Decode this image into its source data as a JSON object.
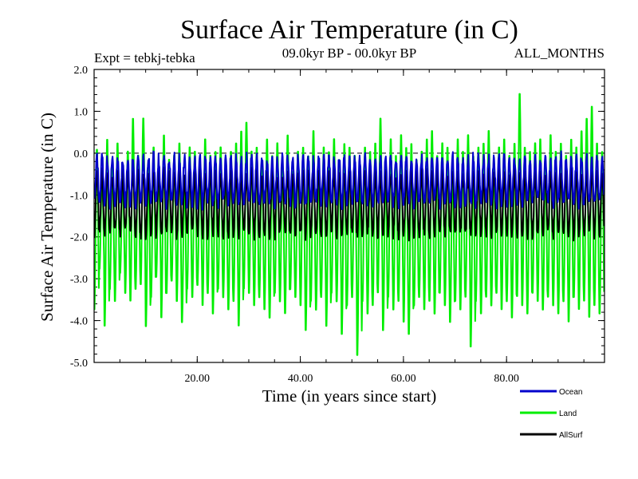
{
  "chart_data": {
    "type": "line",
    "title": "Surface Air Temperature (in C)",
    "subtitle_left": "Expt = tebkj-tebka",
    "subtitle_center": "09.0kyr BP - 00.0kyr BP",
    "subtitle_right": "ALL_MONTHS",
    "xlabel": "Time (in years since start)",
    "ylabel": "Surface Air Temperature (in C)",
    "xlim": [
      0,
      99
    ],
    "ylim": [
      -5.0,
      2.0
    ],
    "x_ticks": [
      20,
      40,
      60,
      80
    ],
    "x_tick_labels": [
      "20.00",
      "40.00",
      "60.00",
      "80.00"
    ],
    "y_ticks": [
      2.0,
      1.0,
      0.0,
      -1.0,
      -2.0,
      -3.0,
      -4.0,
      -5.0
    ],
    "y_tick_labels": [
      "2.0",
      "1.0",
      "0.0",
      "-1.0",
      "-2.0",
      "-3.0",
      "-4.0",
      "-5.0"
    ],
    "reference_line": 0.0,
    "samples_per_year": 12,
    "series": [
      {
        "name": "Ocean",
        "color": "#0000cc",
        "mean": -0.65,
        "seasonal_amplitude": 0.55,
        "note": "monthly values oscillate annually between approx -1.2 and 0.1"
      },
      {
        "name": "Land",
        "color": "#00ee00",
        "mean": -1.4,
        "seasonal_amplitude": 2.0,
        "note": "monthly values oscillate annually between approx -3.6 and 0.6",
        "annual_peaks": [
          0.15,
          -0.5,
          0.4,
          -0.2,
          0.3,
          -0.6,
          0.1,
          0.9,
          0.0,
          0.9,
          -0.3,
          0.2,
          -0.4,
          0.5,
          -0.1,
          0.0,
          0.3,
          -0.5,
          0.2,
          0.1,
          -0.3,
          0.4,
          0.0,
          0.1,
          0.2,
          -0.2,
          0.1,
          0.3,
          0.6,
          0.8,
          0.1,
          0.2,
          -0.1,
          0.4,
          0.0,
          0.3,
          -0.2,
          0.5,
          -0.4,
          0.1,
          0.2,
          0.0,
          0.6,
          -0.3,
          0.2,
          0.1,
          0.4,
          -0.1,
          0.3,
          0.2,
          0.0,
          -0.4,
          0.2,
          0.1,
          0.3,
          0.9,
          -0.2,
          0.4,
          0.0,
          0.5,
          0.2,
          0.3,
          -0.1,
          0.1,
          0.4,
          0.6,
          0.0,
          0.3,
          0.2,
          -0.3,
          0.4,
          0.1,
          0.5,
          0.0,
          0.2,
          0.3,
          0.6,
          -0.1,
          0.2,
          0.4,
          0.0,
          0.3,
          1.5,
          0.2,
          0.1,
          0.3,
          0.4,
          -0.2,
          0.5,
          0.1,
          0.3,
          0.0,
          0.4,
          0.2,
          0.6,
          0.9,
          1.2,
          0.3,
          0.1
        ],
        "annual_troughs": [
          -3.8,
          -2.8,
          -4.2,
          -3.3,
          -3.6,
          -2.9,
          -3.4,
          -3.6,
          -3.3,
          -3.2,
          -4.2,
          -3.5,
          -3.0,
          -4.0,
          -3.4,
          -3.1,
          -3.6,
          -4.1,
          -3.3,
          -3.5,
          -3.2,
          -3.7,
          -3.4,
          -3.9,
          -3.3,
          -3.5,
          -3.8,
          -3.6,
          -4.2,
          -3.3,
          -3.4,
          -3.7,
          -3.5,
          -3.8,
          -4.0,
          -3.4,
          -3.6,
          -3.9,
          -3.3,
          -3.5,
          -3.7,
          -4.3,
          -3.6,
          -3.8,
          -3.5,
          -4.2,
          -3.4,
          -3.6,
          -4.4,
          -3.7,
          -3.5,
          -4.9,
          -3.6,
          -3.9,
          -3.7,
          -3.4,
          -4.3,
          -3.5,
          -3.8,
          -3.6,
          -4.1,
          -4.4,
          -3.7,
          -3.5,
          -3.8,
          -3.6,
          -3.9,
          -3.4,
          -3.7,
          -4.1,
          -3.6,
          -3.8,
          -3.5,
          -4.7,
          -3.6,
          -3.9,
          -3.5,
          -3.7,
          -3.4,
          -3.8,
          -3.6,
          -4.0,
          -3.5,
          -3.7,
          -3.9,
          -3.4,
          -3.6,
          -3.8,
          -3.5,
          -3.7,
          -3.9,
          -3.6,
          -4.1,
          -3.5,
          -3.8,
          -3.6,
          -4.0,
          -3.7,
          -3.9
        ]
      },
      {
        "name": "AllSurf",
        "color": "#000000",
        "mean": -1.2,
        "seasonal_amplitude": 0.75,
        "note": "monthly values oscillate annually between approx -2.0 and -0.4"
      }
    ],
    "legend_position": "bottom-right"
  }
}
